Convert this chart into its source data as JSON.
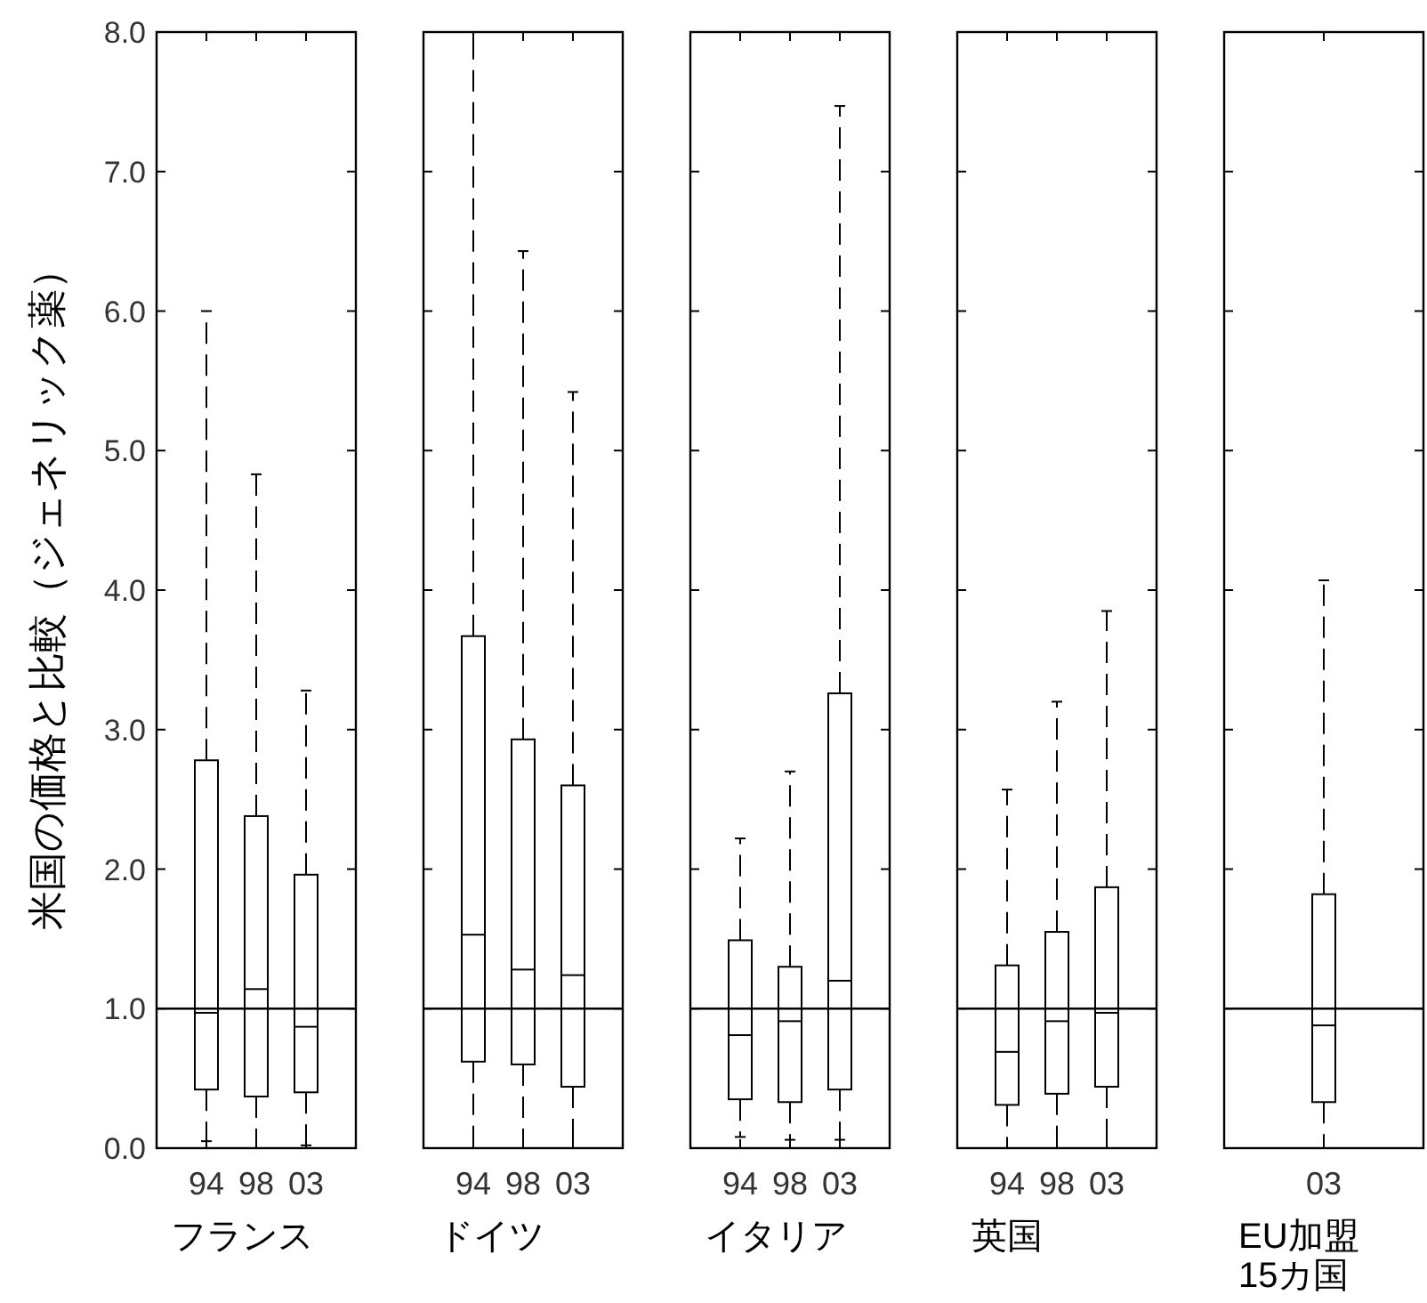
{
  "chart_data": [
    {
      "type": "box",
      "xlabel": "フランス",
      "ylabel": "米国の価格と比較（ジェネリック薬）",
      "categories": [
        "94",
        "98",
        "03"
      ],
      "ylim": [
        0,
        8
      ],
      "yticks": [
        {
          "value": 0,
          "label": "0.0"
        },
        {
          "value": 1,
          "label": "1.0"
        },
        {
          "value": 2,
          "label": "2.0"
        },
        {
          "value": 3,
          "label": "3.0"
        },
        {
          "value": 4,
          "label": "4.0"
        },
        {
          "value": 5,
          "label": "5.0"
        },
        {
          "value": 6,
          "label": "6.0"
        },
        {
          "value": 7,
          "label": "7.0"
        },
        {
          "value": 8,
          "label": "8.0"
        }
      ],
      "ref_lines": [
        {
          "axis": "y",
          "value": 1
        }
      ],
      "boxes": [
        {
          "low": 0.05,
          "q1": 0.42,
          "median": 0.97,
          "q3": 2.78,
          "high": 6.0
        },
        {
          "low": 0,
          "q1": 0.37,
          "median": 1.14,
          "q3": 2.38,
          "high": 4.83
        },
        {
          "low": 0.02,
          "q1": 0.4,
          "median": 0.87,
          "q3": 1.96,
          "high": 3.28
        }
      ]
    },
    {
      "type": "box",
      "xlabel": "ドイツ",
      "categories": [
        "94",
        "98",
        "03"
      ],
      "ylim": [
        0,
        8
      ],
      "yticks": [
        0,
        1,
        2,
        3,
        4,
        5,
        6,
        7,
        8
      ],
      "tick_labels": "x",
      "ref_lines": [
        {
          "axis": "y",
          "value": 1
        }
      ],
      "boxes": [
        {
          "low": 0,
          "q1": 0.62,
          "median": 1.53,
          "q3": 3.67,
          "high": 8.0
        },
        {
          "low": 0,
          "q1": 0.6,
          "median": 1.28,
          "q3": 2.93,
          "high": 6.43
        },
        {
          "low": 0,
          "q1": 0.44,
          "median": 1.24,
          "q3": 2.6,
          "high": 5.42
        }
      ]
    },
    {
      "type": "box",
      "xlabel": "イタリア",
      "categories": [
        "94",
        "98",
        "03"
      ],
      "ylim": [
        0,
        8
      ],
      "yticks": [
        0,
        1,
        2,
        3,
        4,
        5,
        6,
        7,
        8
      ],
      "tick_labels": "x",
      "ref_lines": [
        {
          "axis": "y",
          "value": 1
        }
      ],
      "boxes": [
        {
          "low": 0.08,
          "q1": 0.35,
          "median": 0.81,
          "q3": 1.49,
          "high": 2.22
        },
        {
          "low": 0.06,
          "q1": 0.33,
          "median": 0.91,
          "q3": 1.3,
          "high": 2.7
        },
        {
          "low": 0.06,
          "q1": 0.42,
          "median": 1.2,
          "q3": 3.26,
          "high": 7.47
        }
      ]
    },
    {
      "type": "box",
      "xlabel": "英国",
      "categories": [
        "94",
        "98",
        "03"
      ],
      "ylim": [
        0,
        8
      ],
      "yticks": [
        0,
        1,
        2,
        3,
        4,
        5,
        6,
        7,
        8
      ],
      "tick_labels": "x",
      "ref_lines": [
        {
          "axis": "y",
          "value": 1
        }
      ],
      "boxes": [
        {
          "low": 0,
          "q1": 0.31,
          "median": 0.69,
          "q3": 1.31,
          "high": 2.57
        },
        {
          "low": 0,
          "q1": 0.39,
          "median": 0.91,
          "q3": 1.55,
          "high": 3.2
        },
        {
          "low": 0,
          "q1": 0.44,
          "median": 0.97,
          "q3": 1.87,
          "high": 3.85
        }
      ]
    },
    {
      "type": "box",
      "xlabel": "EU加盟\n15カ国",
      "categories": [
        "03"
      ],
      "ylim": [
        0,
        8
      ],
      "yticks": [
        0,
        1,
        2,
        3,
        4,
        5,
        6,
        7,
        8
      ],
      "tick_labels": "x",
      "ref_lines": [
        {
          "axis": "y",
          "value": 1
        }
      ],
      "boxes": [
        {
          "low": 0,
          "q1": 0.33,
          "median": 0.88,
          "q3": 1.82,
          "high": 4.07
        }
      ]
    }
  ]
}
